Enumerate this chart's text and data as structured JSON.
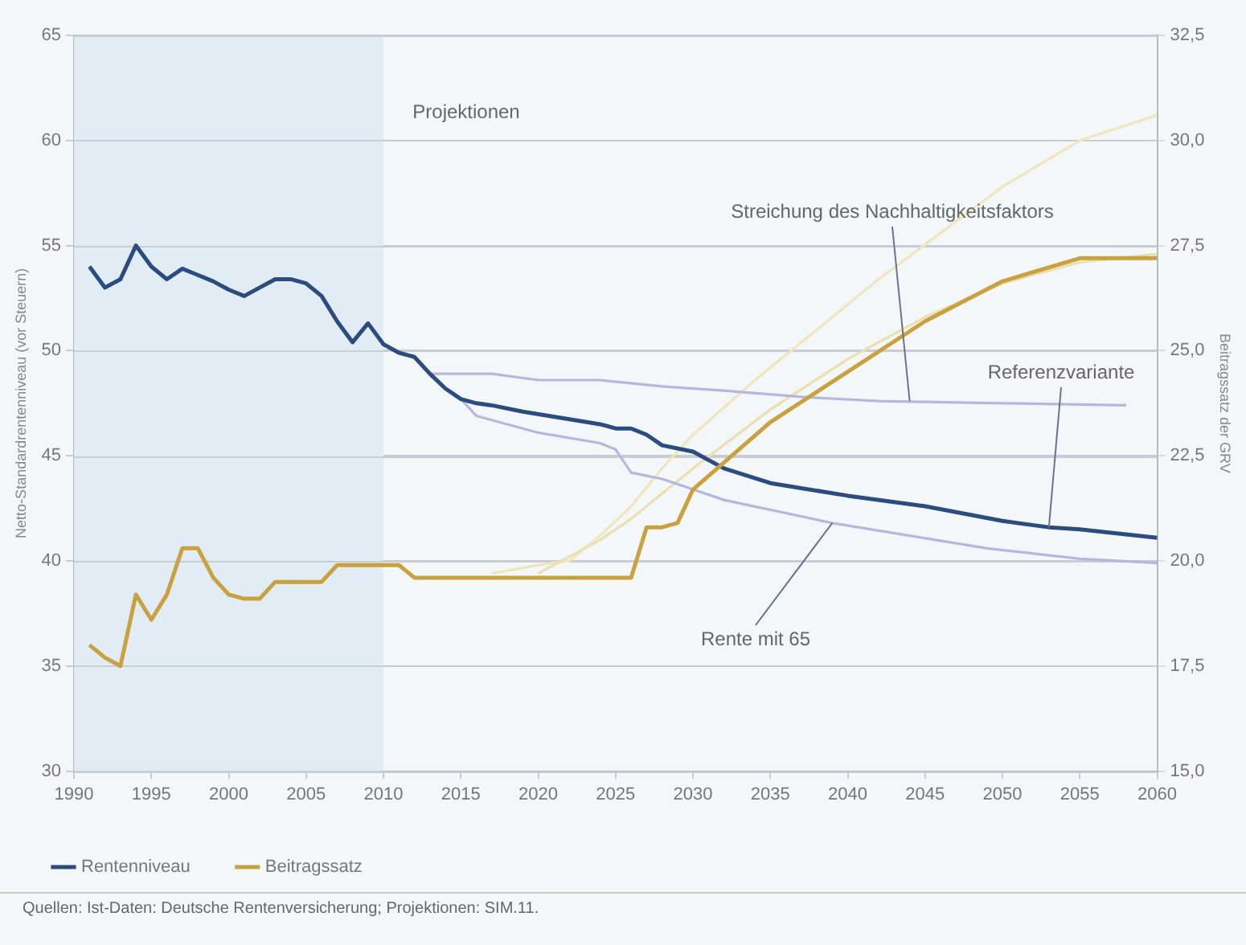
{
  "chart_data": {
    "type": "line",
    "ylabel": "Netto-Standardrentenniveau (vor Steuern)",
    "y2label": "Beitragssatz der GRV",
    "xlim": [
      1990,
      2060
    ],
    "xticks": [
      1990,
      1995,
      2000,
      2005,
      2010,
      2015,
      2020,
      2025,
      2030,
      2035,
      2040,
      2045,
      2050,
      2055,
      2060
    ],
    "ylim": [
      30,
      65
    ],
    "yticks": [
      30,
      35,
      40,
      45,
      50,
      55,
      60,
      65
    ],
    "y2lim": [
      15,
      32.5
    ],
    "y2ticks": [
      {
        "value": 15,
        "label": "15,0"
      },
      {
        "value": 17.5,
        "label": "17,5"
      },
      {
        "value": 20,
        "label": "20,0"
      },
      {
        "value": 22.5,
        "label": "22,5"
      },
      {
        "value": 25,
        "label": "25,0"
      },
      {
        "value": 27.5,
        "label": "27,5"
      },
      {
        "value": 30,
        "label": "30,0"
      },
      {
        "value": 32.5,
        "label": "32,5"
      }
    ],
    "grid": "y",
    "legend": "bottom",
    "marker": "none",
    "line_style": "solid",
    "bands": [
      {
        "axis": "x",
        "from": 1990,
        "to": 2010,
        "color": "#e2ecf5"
      }
    ],
    "series": [
      {
        "color": "#efe6bd",
        "axis": "y2",
        "x": [
          2017,
          2020,
          2022,
          2024,
          2026,
          2028,
          2030,
          2034,
          2038,
          2042,
          2046,
          2050,
          2055,
          2060
        ],
        "values": [
          19.7,
          19.9,
          20.0,
          20.6,
          21.3,
          22.2,
          23.0,
          24.3,
          25.5,
          26.7,
          27.8,
          28.9,
          30.0,
          30.6
        ]
      },
      {
        "color": "#ebe0b0",
        "axis": "y2",
        "x": [
          2020,
          2024,
          2026,
          2028,
          2030,
          2035,
          2040,
          2045,
          2050,
          2055,
          2060
        ],
        "values": [
          19.7,
          20.5,
          21.0,
          21.6,
          22.2,
          23.6,
          24.8,
          25.8,
          26.6,
          27.1,
          27.3
        ]
      },
      {
        "color": "#b5b8dc",
        "x": [
          2013,
          2014,
          2017,
          2020,
          2024,
          2028,
          2032,
          2037,
          2042,
          2050,
          2058
        ],
        "values": [
          48.9,
          48.9,
          48.9,
          48.6,
          48.6,
          48.3,
          48.1,
          47.8,
          47.6,
          47.5,
          47.4
        ]
      },
      {
        "color": "#b5b8dc",
        "x": [
          2015,
          2016,
          2020,
          2024,
          2025,
          2026,
          2028,
          2030,
          2032,
          2039,
          2049,
          2055,
          2060
        ],
        "values": [
          47.7,
          46.9,
          46.1,
          45.6,
          45.3,
          44.2,
          43.9,
          43.4,
          42.9,
          41.8,
          40.6,
          40.1,
          39.9
        ]
      },
      {
        "name": "Rentenniveau",
        "color": "#2b4c7e",
        "x": [
          1991,
          1992,
          1993,
          1994,
          1995,
          1996,
          1997,
          1998,
          1999,
          2000,
          2001,
          2002,
          2003,
          2004,
          2005,
          2006,
          2007,
          2008,
          2009,
          2010,
          2011,
          2012,
          2013,
          2014,
          2015,
          2016,
          2017,
          2019,
          2024,
          2025,
          2026,
          2027,
          2028,
          2030,
          2032,
          2035,
          2040,
          2045,
          2050,
          2053,
          2055,
          2060
        ],
        "values": [
          54.0,
          53.0,
          53.4,
          55.0,
          54.0,
          53.4,
          53.9,
          53.6,
          53.3,
          52.9,
          52.6,
          53.0,
          53.4,
          53.4,
          53.2,
          52.6,
          51.4,
          50.4,
          51.3,
          50.3,
          49.9,
          49.7,
          48.9,
          48.2,
          47.7,
          47.5,
          47.4,
          47.1,
          46.5,
          46.3,
          46.3,
          46.0,
          45.5,
          45.2,
          44.4,
          43.7,
          43.1,
          42.6,
          41.9,
          41.6,
          41.5,
          41.1
        ]
      },
      {
        "name": "Beitragssatz",
        "color": "#c9a23f",
        "axis": "y2",
        "x": [
          1991,
          1992,
          1993,
          1994,
          1995,
          1996,
          1997,
          1998,
          1999,
          2000,
          2001,
          2002,
          2003,
          2004,
          2005,
          2006,
          2007,
          2008,
          2009,
          2010,
          2011,
          2012,
          2013,
          2020,
          2026,
          2027,
          2028,
          2029,
          2030,
          2035,
          2040,
          2045,
          2050,
          2055,
          2060
        ],
        "values": [
          18.0,
          17.7,
          17.5,
          19.2,
          18.6,
          19.2,
          20.3,
          20.3,
          19.6,
          19.2,
          19.1,
          19.1,
          19.5,
          19.5,
          19.5,
          19.5,
          19.9,
          19.9,
          19.9,
          19.9,
          19.9,
          19.6,
          19.6,
          19.6,
          19.6,
          20.8,
          20.8,
          20.9,
          21.7,
          23.3,
          24.5,
          25.7,
          26.65,
          27.2,
          27.2
        ]
      }
    ],
    "annotations": [
      "Projektionen",
      {
        "text": "Streichung des Nachhaltigkeitsfaktors",
        "x": 2044,
        "y": 47.6
      },
      {
        "text": "Referenzvariante",
        "x": 2053,
        "y": 41.6
      },
      {
        "text": "Rente mit 65",
        "x": 2039,
        "y": 41.8
      },
      "Quellen: Ist-Daten: Deutsche Rentenversicherung; Projektionen: SIM.11."
    ]
  }
}
